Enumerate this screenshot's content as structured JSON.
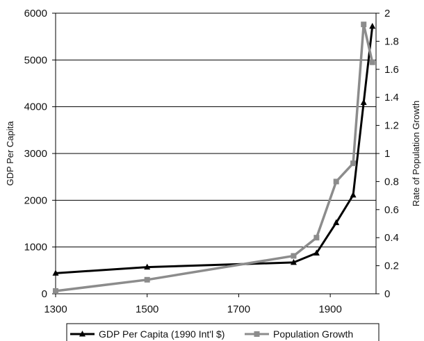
{
  "chart_data": {
    "type": "line",
    "title": "",
    "xlabel": "",
    "ylabel": "GDP Per Capita",
    "y2label": "Rate of Population Growth",
    "x_ticks": [
      1300,
      1500,
      1700,
      1900
    ],
    "y_ticks": [
      0,
      1000,
      2000,
      3000,
      4000,
      5000,
      6000
    ],
    "y2_ticks": [
      0,
      0.2,
      0.4,
      0.6,
      0.8,
      1,
      1.2,
      1.4,
      1.6,
      1.8,
      2
    ],
    "xlim": [
      1300,
      2000
    ],
    "ylim": [
      0,
      6000
    ],
    "y2lim": [
      0,
      2
    ],
    "grid": "horizontal major gridlines",
    "legend_position": "bottom",
    "series": [
      {
        "name": "GDP Per Capita (1990 Int'l $)",
        "axis": "left",
        "color": "#000000",
        "marker": "triangle",
        "x": [
          1300,
          1500,
          1820,
          1870,
          1913,
          1950,
          1973,
          1992
        ],
        "values": [
          440,
          570,
          670,
          870,
          1520,
          2110,
          4090,
          5720
        ]
      },
      {
        "name": "Population Growth",
        "axis": "right",
        "color": "#8c8c8c",
        "marker": "square",
        "x": [
          1300,
          1500,
          1820,
          1870,
          1913,
          1950,
          1973,
          1992
        ],
        "values": [
          0.02,
          0.1,
          0.27,
          0.4,
          0.8,
          0.93,
          1.92,
          1.65
        ]
      }
    ]
  }
}
